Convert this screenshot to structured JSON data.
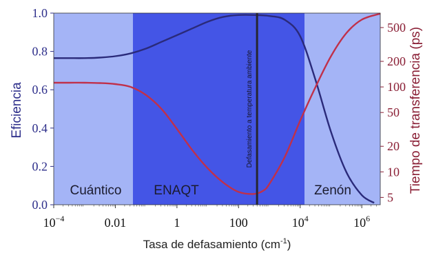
{
  "chart_data": {
    "type": "line",
    "xlabel": "Tasa de defasamiento (cm",
    "xlabel_sup": "-1",
    "xlabel_end": ")",
    "ylabel_left": "Eficiencia",
    "ylabel_right": "Tiempo de transferencia (ps)",
    "x_scale": "log",
    "x_range_log10": [
      -4,
      6.6
    ],
    "x_ticks": [
      {
        "log10": -4,
        "base": "10",
        "exp": "−4"
      },
      {
        "log10": -2,
        "text": "0.01"
      },
      {
        "log10": 0,
        "text": "1"
      },
      {
        "log10": 2,
        "text": "100"
      },
      {
        "log10": 4,
        "base": "10",
        "exp": "4"
      },
      {
        "log10": 6,
        "base": "10",
        "exp": "6"
      }
    ],
    "y_left_range": [
      0,
      1
    ],
    "y_left_ticks": [
      "0.0",
      "0.2",
      "0.4",
      "0.6",
      "0.8",
      "1.0"
    ],
    "y_right_scale": "log",
    "y_right_range": [
      4.1,
      740
    ],
    "y_right_ticks": [
      "5",
      "10",
      "20",
      "50",
      "100",
      "200",
      "500"
    ],
    "regions": [
      {
        "label": "Cuántico",
        "from_log10": -4,
        "to_log10": -1.43,
        "color": "#a4b4f6"
      },
      {
        "label": "ENAQT",
        "from_log10": -1.43,
        "to_log10": 4.14,
        "color": "#4455e6"
      },
      {
        "label": "Zenón",
        "from_log10": 4.14,
        "to_log10": 6.6,
        "color": "#a4b4f6"
      }
    ],
    "vertical_line": {
      "at_log10": 2.6,
      "label": "Defasamiento a temperatura ambiente",
      "color": "#262630"
    },
    "series": [
      {
        "axis": "left",
        "color": "#2a2a7a",
        "x_log10": [
          -4,
          -3.5,
          -3,
          -2.5,
          -2,
          -1.5,
          -1,
          -0.5,
          0,
          0.5,
          1,
          1.5,
          2,
          2.5,
          3,
          3.5,
          4,
          4.5,
          5,
          5.5,
          6,
          6.4
        ],
        "values": [
          0.765,
          0.765,
          0.765,
          0.768,
          0.775,
          0.79,
          0.815,
          0.85,
          0.885,
          0.92,
          0.955,
          0.98,
          0.99,
          0.99,
          0.985,
          0.965,
          0.88,
          0.65,
          0.38,
          0.17,
          0.05,
          0.01
        ]
      },
      {
        "axis": "right",
        "color": "#c0304a",
        "x_log10": [
          -4,
          -3.5,
          -3,
          -2.5,
          -2,
          -1.5,
          -1,
          -0.5,
          0,
          0.5,
          1,
          1.5,
          2,
          2.5,
          2.8,
          3,
          3.5,
          4,
          4.5,
          5,
          5.5,
          6,
          6.6
        ],
        "values": [
          112,
          112,
          112,
          111,
          108,
          100,
          80,
          55,
          32,
          18,
          11,
          7.5,
          5.8,
          5.5,
          6.0,
          7.2,
          15,
          40,
          100,
          230,
          430,
          620,
          730
        ]
      }
    ]
  }
}
